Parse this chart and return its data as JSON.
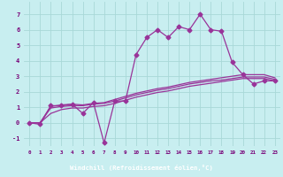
{
  "xlabel": "Windchill (Refroidissement éolien,°C)",
  "background_color": "#c8eef0",
  "line_color": "#993399",
  "x_values": [
    0,
    1,
    2,
    3,
    4,
    5,
    6,
    7,
    8,
    9,
    10,
    11,
    12,
    13,
    14,
    15,
    16,
    17,
    18,
    19,
    20,
    21,
    22,
    23
  ],
  "main_line": [
    0,
    -0.1,
    1.1,
    1.1,
    1.2,
    0.6,
    1.3,
    -1.3,
    1.4,
    1.4,
    4.4,
    5.5,
    6.0,
    5.5,
    6.2,
    6.0,
    7.0,
    6.0,
    5.9,
    3.9,
    3.1,
    2.5,
    2.7,
    2.7
  ],
  "line2": [
    0,
    0,
    1.05,
    1.15,
    1.2,
    1.15,
    1.25,
    1.3,
    1.5,
    1.7,
    1.9,
    2.05,
    2.2,
    2.3,
    2.45,
    2.6,
    2.7,
    2.8,
    2.9,
    3.0,
    3.1,
    3.1,
    3.1,
    2.9
  ],
  "line3": [
    0,
    0,
    0.95,
    1.05,
    1.1,
    1.1,
    1.2,
    1.25,
    1.4,
    1.6,
    1.8,
    1.95,
    2.1,
    2.2,
    2.35,
    2.5,
    2.6,
    2.7,
    2.75,
    2.85,
    2.95,
    2.95,
    2.95,
    2.8
  ],
  "line4": [
    0,
    0,
    0.6,
    0.85,
    0.95,
    0.95,
    1.05,
    1.1,
    1.25,
    1.45,
    1.65,
    1.8,
    1.95,
    2.05,
    2.2,
    2.35,
    2.45,
    2.55,
    2.65,
    2.75,
    2.85,
    2.85,
    2.85,
    2.7
  ],
  "ylim": [
    -1.5,
    7.8
  ],
  "xlim": [
    -0.5,
    23.5
  ],
  "yticks": [
    -1,
    0,
    1,
    2,
    3,
    4,
    5,
    6,
    7
  ],
  "xticks": [
    0,
    1,
    2,
    3,
    4,
    5,
    6,
    7,
    8,
    9,
    10,
    11,
    12,
    13,
    14,
    15,
    16,
    17,
    18,
    19,
    20,
    21,
    22,
    23
  ],
  "grid_color": "#a8d8d8",
  "xlabel_bg": "#7700aa",
  "xlabel_color": "#ffffff",
  "tick_color": "#770077",
  "marker": "D",
  "markersize": 2.5
}
